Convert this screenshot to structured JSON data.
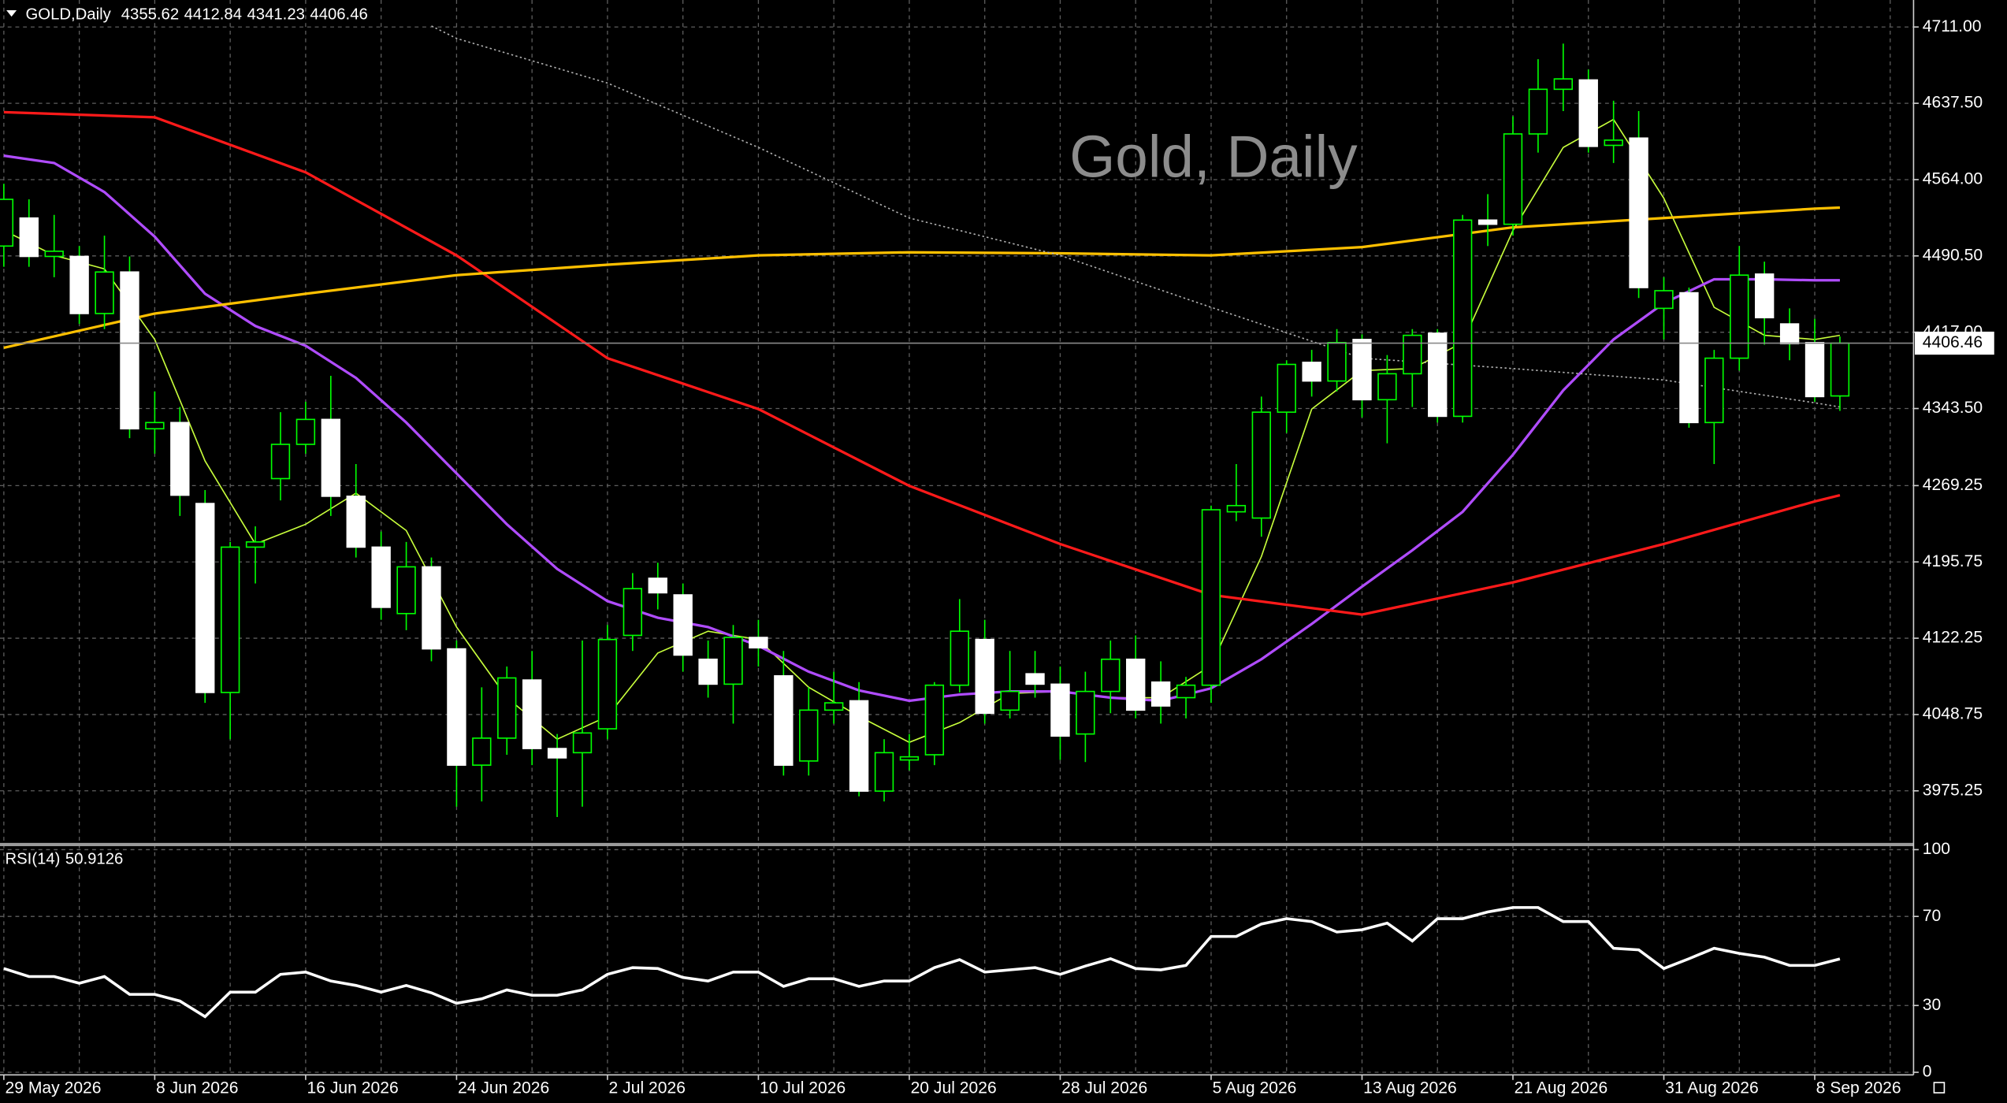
{
  "chart_data": [
    {
      "type": "candlestick",
      "title": "GOLD,Daily",
      "watermark": "Gold, Daily",
      "categories": [
        "29 May 2026",
        null,
        null,
        null,
        null,
        null,
        "8 Jun 2026",
        null,
        null,
        null,
        null,
        null,
        "16 Jun 2026",
        null,
        null,
        null,
        null,
        null,
        "24 Jun 2026",
        null,
        null,
        null,
        null,
        null,
        "2 Jul 2026",
        null,
        null,
        null,
        null,
        null,
        "10 Jul 2026",
        null,
        null,
        null,
        null,
        null,
        "20 Jul 2026",
        null,
        null,
        null,
        null,
        null,
        "28 Jul 2026",
        null,
        null,
        null,
        null,
        null,
        "5 Aug 2026",
        null,
        null,
        null,
        null,
        null,
        "13 Aug 2026",
        null,
        null,
        null,
        null,
        null,
        "21 Aug 2026",
        null,
        null,
        null,
        null,
        null,
        "31 Aug 2026",
        null,
        null,
        null,
        null,
        null,
        "8 Sep 2026",
        null
      ],
      "open": [
        4500,
        4527,
        4490,
        4490,
        4435,
        4475,
        4324,
        4330,
        4252,
        4070,
        4210,
        4276,
        4309,
        4333,
        4259,
        4210,
        4146,
        4191,
        4112,
        4000,
        4026,
        4082,
        4016,
        4012,
        4035,
        4125,
        4180,
        4164,
        4102,
        4078,
        4123,
        4086,
        4004,
        4053,
        4062,
        3975,
        4005,
        4010,
        4077,
        4121,
        4053,
        4088,
        4078,
        4030,
        4071,
        4102,
        4080,
        4065,
        4077,
        4244,
        4238,
        4340,
        4388,
        4370,
        4410,
        4352,
        4377,
        4416,
        4336,
        4525,
        4521,
        4608,
        4651,
        4660,
        4597,
        4604,
        4440,
        4455,
        4330,
        4392,
        4473,
        4425,
        4407,
        4355.62
      ],
      "high": [
        4560,
        4545,
        4530,
        4500,
        4510,
        4490,
        4360,
        4345,
        4265,
        4215,
        4230,
        4340,
        4350,
        4375,
        4290,
        4225,
        4215,
        4200,
        4120,
        4075,
        4095,
        4110,
        4030,
        4120,
        4135,
        4185,
        4195,
        4175,
        4120,
        4135,
        4140,
        4110,
        4075,
        4090,
        4080,
        4025,
        4030,
        4080,
        4160,
        4140,
        4110,
        4110,
        4095,
        4090,
        4120,
        4125,
        4100,
        4085,
        4250,
        4290,
        4355,
        4390,
        4400,
        4420,
        4415,
        4395,
        4420,
        4420,
        4530,
        4550,
        4625,
        4680,
        4695,
        4670,
        4640,
        4630,
        4470,
        4460,
        4400,
        4500,
        4485,
        4440,
        4430,
        4412.84
      ],
      "low": [
        4480,
        4480,
        4470,
        4425,
        4420,
        4315,
        4300,
        4240,
        4060,
        4025,
        4175,
        4255,
        4300,
        4240,
        4200,
        4140,
        4130,
        4100,
        3960,
        3965,
        4010,
        4000,
        3950,
        3960,
        4025,
        4110,
        4150,
        4090,
        4065,
        4040,
        4095,
        3990,
        3990,
        4040,
        3970,
        3965,
        3995,
        4000,
        4070,
        4040,
        4045,
        4065,
        4005,
        4003,
        4050,
        4045,
        4040,
        4045,
        4060,
        4235,
        4220,
        4320,
        4355,
        4360,
        4335,
        4310,
        4345,
        4330,
        4330,
        4500,
        4510,
        4590,
        4630,
        4590,
        4580,
        4450,
        4410,
        4325,
        4290,
        4380,
        4405,
        4390,
        4350,
        4341.23
      ],
      "close": [
        4545,
        4490,
        4495,
        4435,
        4475,
        4324,
        4330,
        4260,
        4070,
        4210,
        4215,
        4309,
        4333,
        4259,
        4210,
        4152,
        4191,
        4112,
        4000,
        4026,
        4084,
        4016,
        4007,
        4031,
        4121,
        4170,
        4166,
        4106,
        4078,
        4123,
        4113,
        4000,
        4053,
        4060,
        3975,
        4012,
        4008,
        4077,
        4129,
        4050,
        4071,
        4078,
        4028,
        4071,
        4102,
        4053,
        4057,
        4077,
        4246,
        4250,
        4340,
        4386,
        4370,
        4407,
        4352,
        4377,
        4414,
        4336,
        4525,
        4521,
        4608,
        4651,
        4661,
        4596,
        4602,
        4460,
        4457,
        4330,
        4392,
        4472,
        4431,
        4406,
        4355,
        4406.46
      ],
      "up_color": "#00ff00",
      "down_color": "#ffffff",
      "wick_color": "#00ff00",
      "overlays": [
        {
          "color": "#c8ff3c",
          "width": 1,
          "x": [
            0,
            2,
            4,
            6,
            8,
            10,
            12,
            14,
            16,
            18,
            20,
            22,
            24,
            26,
            28,
            30,
            32,
            34,
            36,
            38,
            40,
            42,
            44,
            46,
            48,
            50,
            52,
            54,
            56,
            58,
            60,
            62,
            64,
            66,
            68,
            70,
            72,
            73
          ],
          "values": [
            4515,
            4491,
            4478,
            4410,
            4293,
            4213,
            4232,
            4262,
            4226,
            4133,
            4065,
            4025,
            4047,
            4108,
            4129,
            4121,
            4075,
            4047,
            4022,
            4041,
            4069,
            4071,
            4065,
            4065,
            4096,
            4201,
            4343,
            4380,
            4382,
            4407,
            4515,
            4595,
            4622,
            4546,
            4441,
            4414,
            4410,
            4414
          ]
        },
        {
          "color": "#b04cff",
          "width": 2,
          "x": [
            0,
            2,
            4,
            6,
            8,
            10,
            12,
            14,
            16,
            18,
            20,
            22,
            24,
            26,
            28,
            30,
            32,
            34,
            36,
            38,
            40,
            42,
            44,
            46,
            48,
            50,
            52,
            54,
            56,
            58,
            60,
            62,
            64,
            66,
            68,
            70,
            72,
            73
          ],
          "values": [
            4587,
            4580,
            4552,
            4509,
            4454,
            4423,
            4404,
            4373,
            4330,
            4281,
            4232,
            4189,
            4158,
            4142,
            4133,
            4115,
            4090,
            4072,
            4062,
            4068,
            4071,
            4071,
            4065,
            4062,
            4074,
            4102,
            4136,
            4172,
            4207,
            4244,
            4299,
            4361,
            4410,
            4445,
            4468,
            4468,
            4467,
            4467
          ]
        },
        {
          "color": "#ff1a1a",
          "width": 2,
          "x": [
            0,
            6,
            12,
            18,
            24,
            30,
            36,
            42,
            48,
            54,
            60,
            66,
            72,
            73
          ],
          "values": [
            4629,
            4624,
            4571,
            4491,
            4392,
            4343,
            4269,
            4213,
            4164,
            4145,
            4176,
            4213,
            4254,
            4260
          ]
        },
        {
          "color": "#ffc000",
          "width": 2,
          "x": [
            0,
            6,
            12,
            18,
            24,
            30,
            36,
            42,
            48,
            54,
            60,
            66,
            72,
            73
          ],
          "values": [
            4402,
            4435,
            4454,
            4472,
            4482,
            4491,
            4494,
            4493,
            4491,
            4499,
            4518,
            4527,
            4536,
            4537
          ]
        },
        {
          "color": "#b0b0b0",
          "width": 1,
          "dotted": true,
          "x": [
            17,
            18,
            24,
            30,
            36,
            42,
            48,
            54,
            60,
            66,
            72,
            73
          ],
          "values": [
            4712,
            4700,
            4657,
            4595,
            4527,
            4491,
            4441,
            4392,
            4382,
            4371,
            4349,
            4345
          ]
        }
      ],
      "ylim": [
        3926,
        4737
      ],
      "yticks": [
        {
          "value": 4711,
          "label": "4711.00"
        },
        {
          "value": 4637.5,
          "label": "4637.50"
        },
        {
          "value": 4564,
          "label": "4564.00"
        },
        {
          "value": 4490.5,
          "label": "4490.50"
        },
        {
          "value": 4417,
          "label": "4417.00"
        },
        {
          "value": 4343.5,
          "label": "4343.50"
        },
        {
          "value": 4269.25,
          "label": "4269.25"
        },
        {
          "value": 4195.75,
          "label": "4195.75"
        },
        {
          "value": 4122.25,
          "label": "4122.25"
        },
        {
          "value": 4048.75,
          "label": "4048.75"
        },
        {
          "value": 3975.25,
          "label": "3975.25"
        }
      ],
      "grid": true
    },
    {
      "type": "line",
      "title": "RSI(14)",
      "color": "#ffffff",
      "values": [
        46.6,
        43,
        43,
        40,
        43,
        35,
        35,
        32,
        25,
        36,
        36,
        44,
        45,
        41,
        39,
        36,
        39,
        35.7,
        31,
        33,
        37,
        34.6,
        34.6,
        37,
        44,
        47,
        46.6,
        42.6,
        41,
        45,
        45,
        38.6,
        42,
        42,
        38.6,
        41,
        41,
        47,
        50.6,
        45,
        46,
        47,
        44,
        47.7,
        51,
        46.6,
        46,
        48,
        61,
        61,
        66.6,
        69,
        67.7,
        63,
        64,
        67,
        59,
        69,
        69,
        72,
        74,
        74,
        67.7,
        67.7,
        55.7,
        55,
        46.6,
        51,
        55.7,
        53.4,
        51.7,
        48,
        48,
        50.9126
      ],
      "ylim": [
        0,
        100
      ],
      "yticks": [
        100,
        70,
        30,
        0
      ],
      "grid": true
    }
  ]
}
